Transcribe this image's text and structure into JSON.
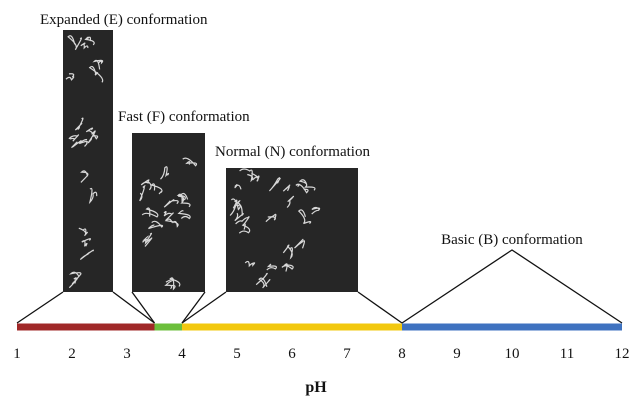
{
  "axis": {
    "label": "pH",
    "range": [
      1,
      12
    ],
    "ticks": [
      1,
      2,
      3,
      4,
      5,
      6,
      7,
      8,
      9,
      10,
      11,
      12
    ]
  },
  "conformations": [
    {
      "label": "Expanded (E) conformation",
      "range": [
        1,
        3.5
      ],
      "color": "#a02828"
    },
    {
      "label": "Fast (F) conformation",
      "range": [
        3.5,
        4
      ],
      "color": "#6cbf3c"
    },
    {
      "label": "Normal (N) conformation",
      "range": [
        4,
        8
      ],
      "color": "#f2c80f"
    },
    {
      "label": "Basic (B) conformation",
      "range": [
        8,
        12
      ],
      "color": "#3f72c0"
    }
  ]
}
